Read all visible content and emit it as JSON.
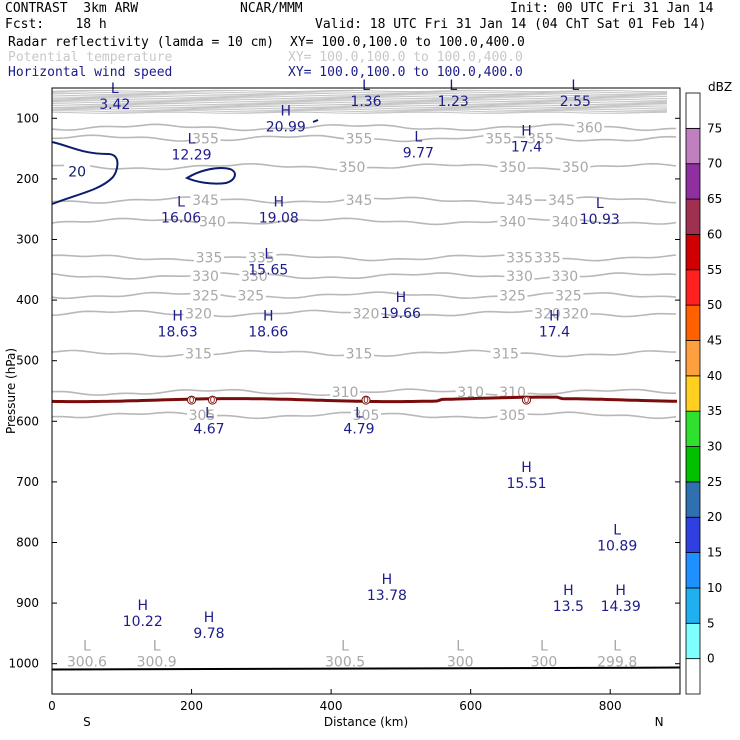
{
  "header": {
    "model": "CONTRAST  3km ARW",
    "source": "NCAR/MMM",
    "init": "Init: 00 UTC Fri 31 Jan 14",
    "fcst": "Fcst:    18 h",
    "valid": "Valid: 18 UTC Fri 31 Jan 14 (04 ChT Sat 01 Feb 14)"
  },
  "fields": [
    {
      "name": "Radar reflectivity (lamda = 10 cm)",
      "xy": "XY= 100.0,100.0 to 100.0,400.0",
      "color": "#000000"
    },
    {
      "name": "Potential temperature",
      "xy": "XY= 100.0,100.0 to 100.0,400.0",
      "color": "#c0c0c0"
    },
    {
      "name": "Horizontal wind speed",
      "xy": "XY= 100.0,100.0 to 100.0,400.0",
      "color": "#1c1c8a"
    }
  ],
  "chart_data": {
    "type": "cross-section",
    "xlabel": "Distance (km)",
    "ylabel": "Pressure (hPa)",
    "xlim": [
      0,
      900
    ],
    "ylim": [
      1050,
      50
    ],
    "xticks": [
      0,
      200,
      400,
      600,
      800
    ],
    "yticks": [
      100,
      200,
      300,
      400,
      500,
      600,
      700,
      800,
      900,
      1000
    ],
    "x_end_labels": {
      "left": "S",
      "right": "N"
    },
    "theta_contours": [
      {
        "value": 360,
        "p": 115,
        "labels_x": [
          770
        ]
      },
      {
        "value": 355,
        "p": 133,
        "labels_x": [
          220,
          440,
          640,
          700
        ]
      },
      {
        "value": 350,
        "p": 180,
        "labels_x": [
          430,
          660,
          750
        ]
      },
      {
        "value": 345,
        "p": 235,
        "labels_x": [
          220,
          440,
          670,
          730
        ]
      },
      {
        "value": 340,
        "p": 270,
        "labels_x": [
          230,
          660,
          735
        ]
      },
      {
        "value": 335,
        "p": 330,
        "labels_x": [
          225,
          300,
          670,
          710
        ]
      },
      {
        "value": 330,
        "p": 360,
        "labels_x": [
          220,
          290,
          670,
          735
        ]
      },
      {
        "value": 325,
        "p": 392,
        "labels_x": [
          220,
          285,
          660,
          740
        ]
      },
      {
        "value": 320,
        "p": 422,
        "labels_x": [
          210,
          450,
          710,
          750
        ]
      },
      {
        "value": 315,
        "p": 488,
        "labels_x": [
          210,
          440,
          650
        ]
      },
      {
        "value": 310,
        "p": 552,
        "labels_x": [
          420,
          600,
          660
        ]
      },
      {
        "value": 305,
        "p": 590,
        "labels_x": [
          215,
          450,
          660
        ]
      }
    ],
    "freezing_level": {
      "value": 0,
      "p": 565,
      "label_x": [
        200,
        230,
        450,
        680
      ]
    },
    "wind_speed_contour": {
      "value": 20
    },
    "extrema": [
      {
        "type": "L",
        "value": "3.42",
        "field": "wind",
        "x": 90,
        "p": 65
      },
      {
        "type": "L",
        "value": "1.36",
        "field": "wind",
        "x": 450,
        "p": 60
      },
      {
        "type": "L",
        "value": "1.23",
        "field": "wind",
        "x": 575,
        "p": 60
      },
      {
        "type": "L",
        "value": "2.55",
        "field": "wind",
        "x": 750,
        "p": 60
      },
      {
        "type": "H",
        "value": "20.99",
        "field": "wind",
        "x": 335,
        "p": 102
      },
      {
        "type": "L",
        "value": "12.29",
        "field": "wind",
        "x": 200,
        "p": 148
      },
      {
        "type": "L",
        "value": "9.77",
        "field": "wind",
        "x": 525,
        "p": 145
      },
      {
        "type": "H",
        "value": "17.4",
        "field": "wind",
        "x": 680,
        "p": 135
      },
      {
        "type": "L",
        "value": "16.06",
        "field": "wind",
        "x": 185,
        "p": 252
      },
      {
        "type": "H",
        "value": "19.08",
        "field": "wind",
        "x": 325,
        "p": 252
      },
      {
        "type": "L",
        "value": "10.93",
        "field": "wind",
        "x": 785,
        "p": 255
      },
      {
        "type": "L",
        "value": "15.65",
        "field": "wind",
        "x": 310,
        "p": 338
      },
      {
        "type": "H",
        "value": "19.66",
        "field": "wind",
        "x": 500,
        "p": 410
      },
      {
        "type": "H",
        "value": "18.63",
        "field": "wind",
        "x": 180,
        "p": 440
      },
      {
        "type": "H",
        "value": "18.66",
        "field": "wind",
        "x": 310,
        "p": 440
      },
      {
        "type": "H",
        "value": "17.4",
        "field": "wind",
        "x": 720,
        "p": 440
      },
      {
        "type": "L",
        "value": "4.67",
        "field": "wind",
        "x": 225,
        "p": 600
      },
      {
        "type": "L",
        "value": "4.79",
        "field": "wind",
        "x": 440,
        "p": 600
      },
      {
        "type": "H",
        "value": "15.51",
        "field": "wind",
        "x": 680,
        "p": 690
      },
      {
        "type": "L",
        "value": "10.89",
        "field": "wind",
        "x": 810,
        "p": 793
      },
      {
        "type": "H",
        "value": "13.78",
        "field": "wind",
        "x": 480,
        "p": 875
      },
      {
        "type": "H",
        "value": "13.5",
        "field": "wind",
        "x": 740,
        "p": 893
      },
      {
        "type": "H",
        "value": "14.39",
        "field": "wind",
        "x": 815,
        "p": 893
      },
      {
        "type": "H",
        "value": "10.22",
        "field": "wind",
        "x": 130,
        "p": 918
      },
      {
        "type": "H",
        "value": "9.78",
        "field": "wind",
        "x": 225,
        "p": 938
      },
      {
        "type": "L",
        "value": "300.6",
        "field": "theta",
        "x": 50,
        "p": 985
      },
      {
        "type": "L",
        "value": "300.9",
        "field": "theta",
        "x": 150,
        "p": 985
      },
      {
        "type": "L",
        "value": "300.5",
        "field": "theta",
        "x": 420,
        "p": 985
      },
      {
        "type": "L",
        "value": "300",
        "field": "theta",
        "x": 585,
        "p": 985
      },
      {
        "type": "L",
        "value": "300",
        "field": "theta",
        "x": 705,
        "p": 985
      },
      {
        "type": "L",
        "value": "299.8",
        "field": "theta",
        "x": 810,
        "p": 985
      }
    ],
    "colorbar": {
      "units": "dBZ",
      "levels": [
        0,
        5,
        10,
        15,
        20,
        25,
        30,
        35,
        40,
        45,
        50,
        55,
        60,
        65,
        70,
        75
      ],
      "colors": [
        "#ffffff",
        "#80ffff",
        "#20b0f0",
        "#1e90ff",
        "#3040e0",
        "#3070b0",
        "#00c000",
        "#30e030",
        "#ffd020",
        "#ffa040",
        "#ff6000",
        "#ff2020",
        "#d00000",
        "#a03050",
        "#9030a0",
        "#c080c0",
        "#ffffff"
      ]
    }
  }
}
